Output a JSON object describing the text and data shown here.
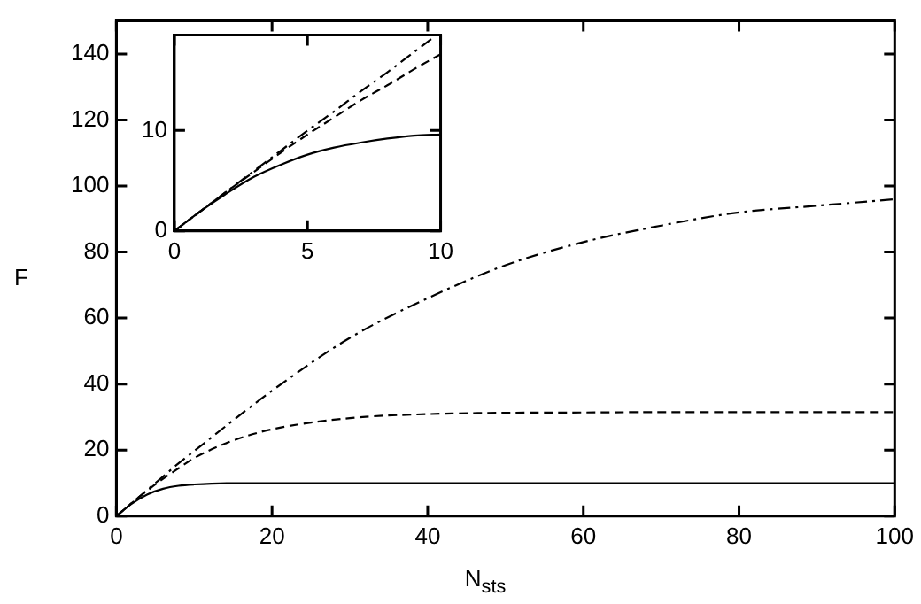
{
  "chart_data": [
    {
      "type": "line",
      "xlabel": "N$_{sts}$",
      "ylabel": "F",
      "x": [
        0,
        2,
        4,
        6,
        8,
        10,
        15,
        20,
        30,
        40,
        50,
        60,
        70,
        80,
        90,
        100
      ],
      "xlim": [
        0,
        100
      ],
      "ylim": [
        0,
        150
      ],
      "xticks": [
        0,
        20,
        40,
        60,
        80,
        100
      ],
      "yticks": [
        0,
        20,
        40,
        60,
        80,
        100,
        120,
        140
      ],
      "grid": false,
      "legend": false,
      "marker": "none",
      "series": [
        {
          "color": "#000000",
          "line_style": "solid",
          "values": [
            0,
            3.8,
            6.6,
            8.3,
            9.2,
            9.6,
            10,
            10,
            10,
            10,
            10,
            10,
            10,
            10,
            10,
            10
          ]
        },
        {
          "color": "#000000",
          "line_style": "dashed",
          "values": [
            0,
            4,
            7.8,
            11.3,
            14.5,
            17.6,
            22.9,
            26.3,
            29.7,
            30.9,
            31.3,
            31.4,
            31.5,
            31.5,
            31.5,
            31.5
          ]
        },
        {
          "color": "#000000",
          "line_style": "dashdot",
          "values": [
            0,
            4,
            8,
            12,
            16,
            19.7,
            29,
            38,
            54,
            66,
            76,
            83,
            88,
            92,
            94,
            96
          ]
        }
      ]
    },
    {
      "type": "line",
      "x": [
        0,
        1,
        2,
        3,
        4,
        5,
        6,
        7,
        8,
        9,
        10
      ],
      "xlim": [
        0,
        10
      ],
      "ylim": [
        0,
        19.5
      ],
      "xticks": [
        0,
        5,
        10
      ],
      "yticks": [
        0,
        10
      ],
      "grid": false,
      "legend": false,
      "marker": "none",
      "series": [
        {
          "color": "#000000",
          "line_style": "solid",
          "values": [
            0,
            2,
            3.8,
            5.4,
            6.6,
            7.6,
            8.3,
            8.8,
            9.2,
            9.5,
            9.6
          ]
        },
        {
          "color": "#000000",
          "line_style": "dashed",
          "values": [
            0,
            2,
            4,
            5.9,
            7.8,
            9.6,
            11.3,
            13,
            14.5,
            16.1,
            17.6
          ]
        },
        {
          "color": "#000000",
          "line_style": "dashdot",
          "x": [
            0,
            1,
            2,
            3,
            4,
            5,
            6,
            7,
            8,
            9,
            9.7
          ],
          "values": [
            0,
            2,
            4,
            6,
            8,
            10,
            11.9,
            13.9,
            15.8,
            17.8,
            19.2
          ]
        }
      ]
    }
  ]
}
